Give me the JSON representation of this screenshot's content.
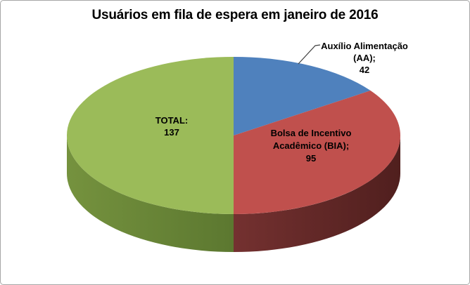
{
  "chart": {
    "background_color": "#FFFFFF",
    "border_color": "#A6A6A6",
    "text_color": "#000000",
    "leader_line_color": "#404040"
  },
  "chart_data": {
    "type": "pie",
    "style": "3d",
    "title": "Usuários em fila de espera em janeiro de 2016",
    "legend": "none",
    "slices": [
      {
        "id": "aa",
        "name": "Auxílio Alimentação (AA)",
        "value": 42,
        "color": "#4F81BD"
      },
      {
        "id": "bia",
        "name": "Bolsa de Incentivo Acadêmico (BIA)",
        "value": 95,
        "color": "#C0504D",
        "side_gradient": [
          "#743130",
          "#501F1E"
        ]
      },
      {
        "id": "total",
        "name": "TOTAL",
        "value": 137,
        "color": "#9BBB59",
        "side_gradient": [
          "#75923E",
          "#5C7830"
        ]
      }
    ],
    "data_labels": {
      "aa": {
        "lines": [
          "Auxílio Alimentação",
          "(AA);",
          "42"
        ]
      },
      "bia": {
        "lines": [
          "Bolsa de Incentivo",
          "Acadêmico (BIA);",
          "95"
        ]
      },
      "total": {
        "lines": [
          "TOTAL:",
          "137"
        ]
      }
    }
  }
}
